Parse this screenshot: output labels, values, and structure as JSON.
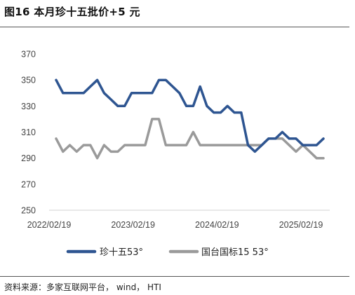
{
  "header": {
    "title": "图16 本月珍十五批价+5 元"
  },
  "footer": {
    "source": "资料来源：多家互联网平台， wind， HTI"
  },
  "chart_data": {
    "type": "line",
    "title": "",
    "xlabel": "",
    "ylabel": "",
    "ylim": [
      250,
      370
    ],
    "yticks": [
      250,
      270,
      290,
      310,
      330,
      350,
      370
    ],
    "xticks": [
      "2022/02/19",
      "2023/02/19",
      "2024/02/19",
      "2025/02/19"
    ],
    "grid": false,
    "legend_position": "bottom",
    "series": [
      {
        "name": "珍十五53°",
        "color": "#2E5591",
        "values": [
          350,
          340,
          340,
          340,
          340,
          345,
          350,
          340,
          335,
          330,
          330,
          340,
          340,
          340,
          340,
          350,
          350,
          345,
          340,
          330,
          330,
          345,
          330,
          325,
          325,
          330,
          325,
          325,
          300,
          295,
          300,
          305,
          305,
          310,
          305,
          305,
          300,
          300,
          300,
          305
        ]
      },
      {
        "name": "国台国标15 53°",
        "color": "#9A9A9A",
        "values": [
          305,
          295,
          300,
          295,
          300,
          300,
          290,
          300,
          295,
          295,
          300,
          300,
          300,
          300,
          320,
          320,
          300,
          300,
          300,
          300,
          310,
          300,
          300,
          300,
          300,
          300,
          300,
          300,
          300,
          300,
          300,
          305,
          305,
          305,
          300,
          295,
          300,
          295,
          290,
          290
        ]
      }
    ]
  }
}
